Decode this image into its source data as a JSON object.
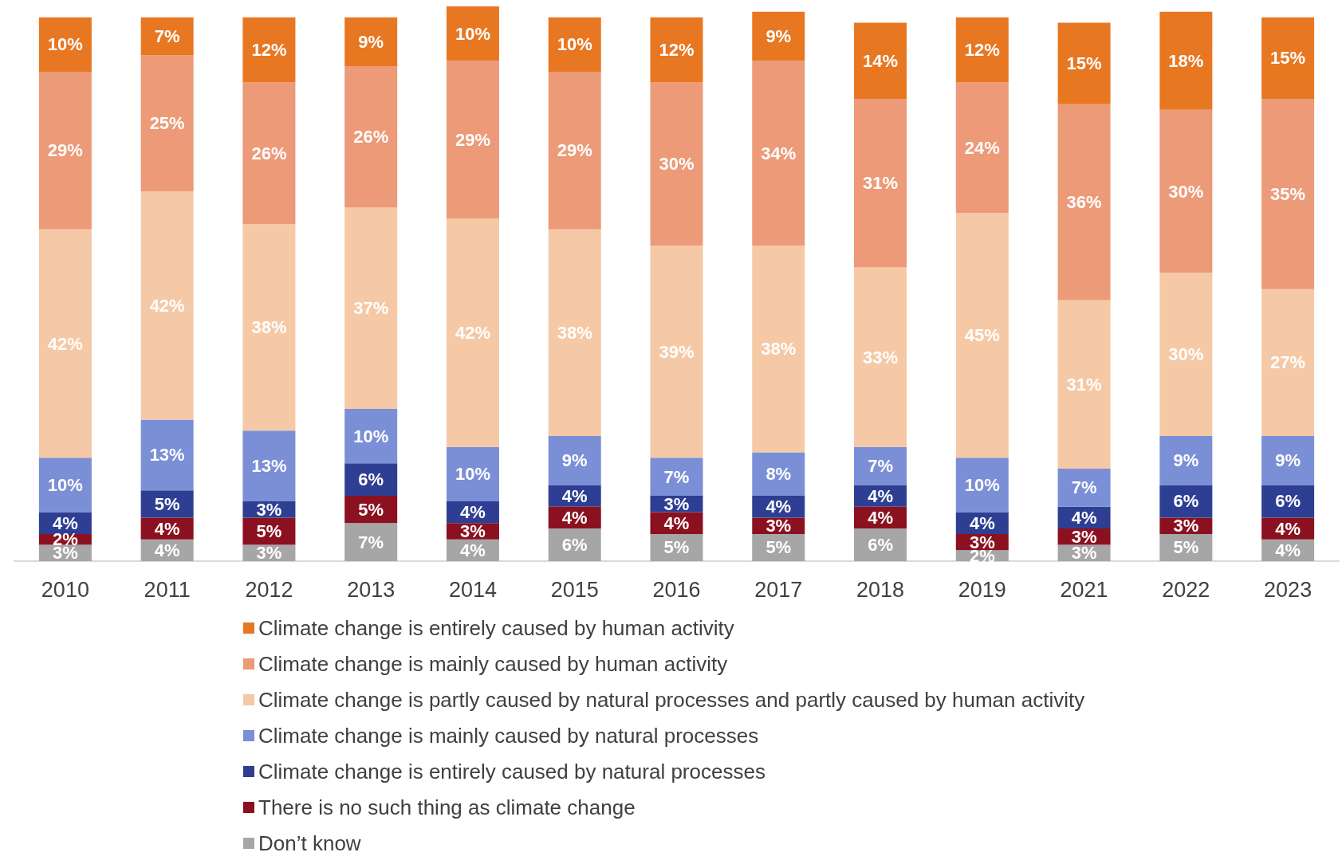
{
  "chart_data": {
    "type": "bar",
    "stacked": true,
    "legend": "bottom",
    "tick_labels": "x",
    "categories": [
      "2010",
      "2011",
      "2012",
      "2013",
      "2014",
      "2015",
      "2016",
      "2017",
      "2018",
      "2019",
      "2021",
      "2022",
      "2023"
    ],
    "series": [
      {
        "name": "Don’t know",
        "color": "#a6a6a6",
        "values": [
          3,
          4,
          3,
          7,
          4,
          6,
          5,
          5,
          6,
          2,
          3,
          5,
          4
        ],
        "value_labels": [
          "3%",
          "4%",
          "3%",
          "7%",
          "4%",
          "6%",
          "5%",
          "5%",
          "6%",
          "2%",
          "3%",
          "5%",
          "4%"
        ]
      },
      {
        "name": "There is no such thing as climate change",
        "color": "#8b1120",
        "values": [
          2,
          4,
          5,
          5,
          3,
          4,
          4,
          3,
          4,
          3,
          3,
          3,
          4
        ],
        "value_labels": [
          "2%",
          "4%",
          "5%",
          "5%",
          "3%",
          "4%",
          "4%",
          "3%",
          "4%",
          "3%",
          "3%",
          "3%",
          "4%"
        ]
      },
      {
        "name": "Climate change is entirely caused by natural processes",
        "color": "#2e3f93",
        "values": [
          4,
          5,
          3,
          6,
          4,
          4,
          3,
          4,
          4,
          4,
          4,
          6,
          6
        ],
        "value_labels": [
          "4%",
          "5%",
          "3%",
          "6%",
          "4%",
          "4%",
          "3%",
          "4%",
          "4%",
          "4%",
          "4%",
          "6%",
          "6%"
        ]
      },
      {
        "name": "Climate change is mainly caused by natural processes",
        "color": "#7b8fd6",
        "values": [
          10,
          13,
          13,
          10,
          10,
          9,
          7,
          8,
          7,
          10,
          7,
          9,
          9
        ],
        "value_labels": [
          "10%",
          "13%",
          "13%",
          "10%",
          "10%",
          "9%",
          "7%",
          "8%",
          "7%",
          "10%",
          "7%",
          "9%",
          "9%"
        ]
      },
      {
        "name": "Climate change is partly caused by natural processes and partly caused by human activity",
        "color": "#f5c9a6",
        "values": [
          42,
          42,
          38,
          37,
          42,
          38,
          39,
          38,
          33,
          45,
          31,
          30,
          27
        ],
        "value_labels": [
          "42%",
          "42%",
          "38%",
          "37%",
          "42%",
          "38%",
          "39%",
          "38%",
          "33%",
          "45%",
          "31%",
          "30%",
          "27%"
        ]
      },
      {
        "name": "Climate change is mainly caused by human activity",
        "color": "#ec9a78",
        "values": [
          29,
          25,
          26,
          26,
          29,
          29,
          30,
          34,
          31,
          24,
          36,
          30,
          35
        ],
        "value_labels": [
          "29%",
          "25%",
          "26%",
          "26%",
          "29%",
          "29%",
          "30%",
          "34%",
          "31%",
          "24%",
          "36%",
          "30%",
          "35%"
        ]
      },
      {
        "name": "Climate change is entirely caused by human activity",
        "color": "#e87722",
        "values": [
          10,
          7,
          12,
          9,
          10,
          10,
          12,
          9,
          14,
          12,
          15,
          18,
          15
        ],
        "value_labels": [
          "10%",
          "7%",
          "12%",
          "9%",
          "10%",
          "10%",
          "12%",
          "9%",
          "14%",
          "12%",
          "15%",
          "18%",
          "15%"
        ]
      }
    ]
  }
}
